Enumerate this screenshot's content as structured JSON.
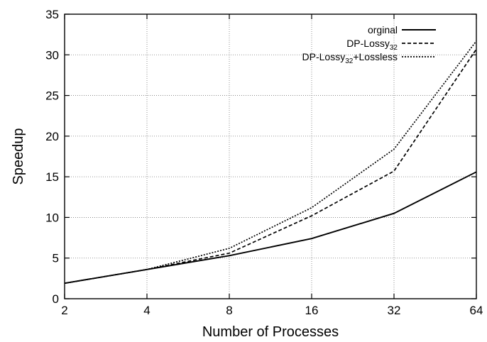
{
  "chart_data": {
    "type": "line",
    "title": "",
    "xlabel": "Number of Processes",
    "ylabel": "Speedup",
    "x_scale": "log2",
    "x": [
      2,
      4,
      8,
      16,
      32,
      64
    ],
    "xlim": [
      2,
      64
    ],
    "ylim": [
      0,
      35
    ],
    "xticks": [
      "2",
      "4",
      "8",
      "16",
      "32",
      "64"
    ],
    "yticks": [
      "0",
      "5",
      "10",
      "15",
      "20",
      "25",
      "30",
      "35"
    ],
    "grid": true,
    "legend_position": "top-right",
    "series": [
      {
        "name": "orginal",
        "name_sub": "",
        "name_suffix": "",
        "style": "solid",
        "values": [
          1.9,
          3.6,
          5.3,
          7.4,
          10.5,
          15.6
        ]
      },
      {
        "name": "DP-Lossy",
        "name_sub": "32",
        "name_suffix": "",
        "style": "dashed",
        "values": [
          1.9,
          3.6,
          5.6,
          10.2,
          15.7,
          30.7
        ]
      },
      {
        "name": "DP-Lossy",
        "name_sub": "32",
        "name_suffix": "+Lossless",
        "style": "dotted",
        "values": [
          1.9,
          3.6,
          6.2,
          11.2,
          18.4,
          31.7
        ]
      }
    ]
  }
}
